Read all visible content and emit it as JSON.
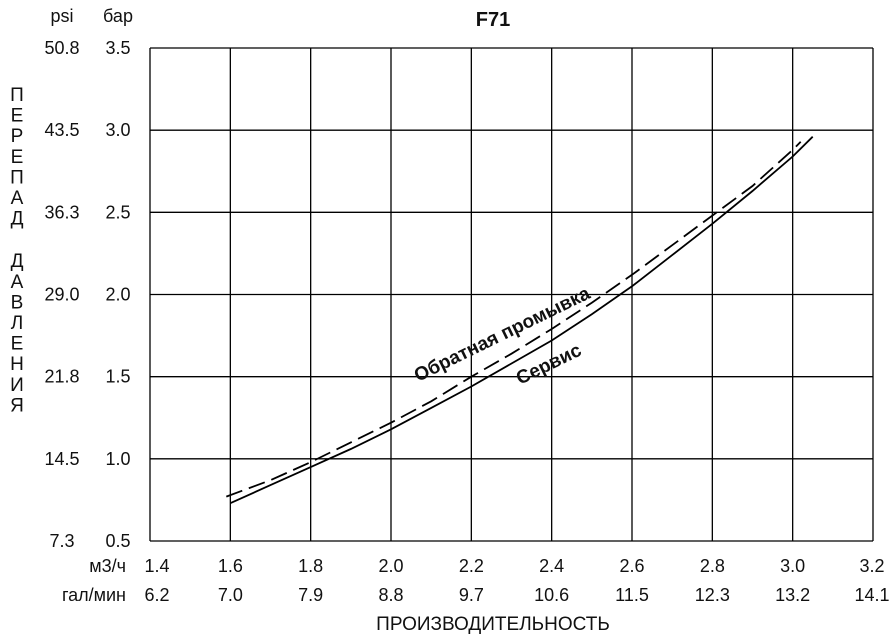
{
  "chart_data": {
    "type": "line",
    "title": "F71",
    "xlabel": "ПРОИЗВОДИТЕЛЬНОСТЬ",
    "ylabel": "ПЕРЕПАД ДАВЛЕНИЯ",
    "x_units": [
      "м3/ч",
      "гал/мин"
    ],
    "y_units": [
      "psi",
      "бар"
    ],
    "xlim": [
      1.4,
      3.2
    ],
    "ylim": [
      0.5,
      3.5
    ],
    "grid": true,
    "x_ticks": [
      {
        "m3h": "1.4",
        "gpm": "6.2"
      },
      {
        "m3h": "1.6",
        "gpm": "7.0"
      },
      {
        "m3h": "1.8",
        "gpm": "7.9"
      },
      {
        "m3h": "2.0",
        "gpm": "8.8"
      },
      {
        "m3h": "2.2",
        "gpm": "9.7"
      },
      {
        "m3h": "2.4",
        "gpm": "10.6"
      },
      {
        "m3h": "2.6",
        "gpm": "11.5"
      },
      {
        "m3h": "2.8",
        "gpm": "12.3"
      },
      {
        "m3h": "3.0",
        "gpm": "13.2"
      },
      {
        "m3h": "3.2",
        "gpm": "14.1"
      }
    ],
    "y_ticks": [
      {
        "psi": "50.8",
        "bar": "3.5"
      },
      {
        "psi": "43.5",
        "bar": "3.0"
      },
      {
        "psi": "36.3",
        "bar": "2.5"
      },
      {
        "psi": "29.0",
        "bar": "2.0"
      },
      {
        "psi": "21.8",
        "bar": "1.5"
      },
      {
        "psi": "14.5",
        "bar": "1.0"
      },
      {
        "psi": "7.3",
        "bar": "0.5"
      }
    ],
    "series": [
      {
        "name": "Обратная промывка",
        "style": "dashed",
        "color": "#000000",
        "x": [
          1.59,
          1.7,
          1.8,
          1.9,
          2.0,
          2.1,
          2.2,
          2.3,
          2.4,
          2.5,
          2.6,
          2.7,
          2.8,
          2.9,
          3.0,
          3.02
        ],
        "y": [
          0.77,
          0.87,
          0.98,
          1.1,
          1.22,
          1.35,
          1.5,
          1.64,
          1.79,
          1.95,
          2.12,
          2.3,
          2.48,
          2.66,
          2.88,
          2.93
        ]
      },
      {
        "name": "Сервис",
        "style": "solid",
        "color": "#000000",
        "x": [
          1.6,
          1.7,
          1.8,
          1.9,
          2.0,
          2.1,
          2.2,
          2.3,
          2.4,
          2.5,
          2.6,
          2.7,
          2.8,
          2.9,
          3.0,
          3.05
        ],
        "y": [
          0.73,
          0.84,
          0.95,
          1.06,
          1.18,
          1.31,
          1.44,
          1.58,
          1.72,
          1.88,
          2.05,
          2.24,
          2.43,
          2.63,
          2.84,
          2.96
        ]
      }
    ]
  }
}
